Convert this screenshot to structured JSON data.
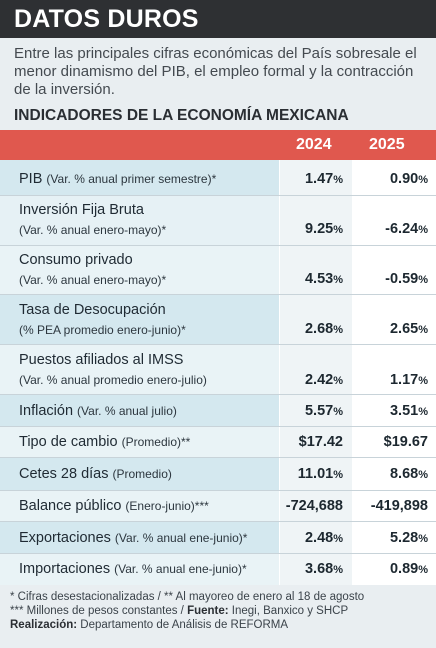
{
  "header": {
    "title": "DATOS DUROS",
    "subtitle": "Entre las principales cifras económicas del País sobresale el menor dinamismo del PIB, el empleo formal y la contracción de la inversión.",
    "section_title": "INDICADORES DE LA ECONOMÍA MEXICANA"
  },
  "table": {
    "col_2024": "2024",
    "col_2025": "2025",
    "rows": [
      {
        "name": "PIB",
        "note": "(Var. % anual primer semestre)*",
        "v2024": "1.47",
        "u2024": "%",
        "v2025": "0.90",
        "u2025": "%"
      },
      {
        "name": "Inversión Fija Bruta",
        "note": "(Var. % anual enero-mayo)*",
        "v2024": "9.25",
        "u2024": "%",
        "v2025": "-6.24",
        "u2025": "%"
      },
      {
        "name": "Consumo privado",
        "note": "(Var. % anual enero-mayo)*",
        "v2024": "4.53",
        "u2024": "%",
        "v2025": "-0.59",
        "u2025": "%"
      },
      {
        "name": "Tasa de Desocupación",
        "note": "(% PEA promedio enero-junio)*",
        "v2024": "2.68",
        "u2024": "%",
        "v2025": "2.65",
        "u2025": "%"
      },
      {
        "name": "Puestos afiliados al IMSS",
        "note": "(Var. % anual promedio enero-julio)",
        "v2024": "2.42",
        "u2024": "%",
        "v2025": "1.17",
        "u2025": "%"
      },
      {
        "name": "Inflación",
        "note": "(Var. % anual julio)",
        "v2024": "5.57",
        "u2024": "%",
        "v2025": "3.51",
        "u2025": "%"
      },
      {
        "name": "Tipo de cambio",
        "note": "(Promedio)**",
        "v2024": "$17.42",
        "u2024": "",
        "v2025": "$19.67",
        "u2025": ""
      },
      {
        "name": "Cetes 28 días",
        "note": "(Promedio)",
        "v2024": "11.01",
        "u2024": "%",
        "v2025": "8.68",
        "u2025": "%"
      },
      {
        "name": "Balance público",
        "note": "(Enero-junio)***",
        "v2024": "-724,688",
        "u2024": "",
        "v2025": "-419,898",
        "u2025": ""
      },
      {
        "name": "Exportaciones",
        "note": "(Var. % anual ene-junio)*",
        "v2024": "2.48",
        "u2024": "%",
        "v2025": "5.28",
        "u2025": "%"
      },
      {
        "name": "Importaciones",
        "note": "(Var. % anual ene-junio)*",
        "v2024": "3.68",
        "u2024": "%",
        "v2025": "0.89",
        "u2025": "%"
      }
    ]
  },
  "footnotes": {
    "line1": "* Cifras desestacionalizadas / ** Al mayoreo de enero al 18 de agosto",
    "line2_prefix": "*** Millones de pesos constantes / ",
    "line2_label": "Fuente:",
    "line2_text": " Inegi, Banxico y SHCP",
    "line3_label": "Realización:",
    "line3_text": " Departamento de Análisis de REFORMA"
  },
  "colors": {
    "title_bar": "#2e3033",
    "header_red": "#e0584e",
    "label_cell": "#d4e8ef"
  }
}
